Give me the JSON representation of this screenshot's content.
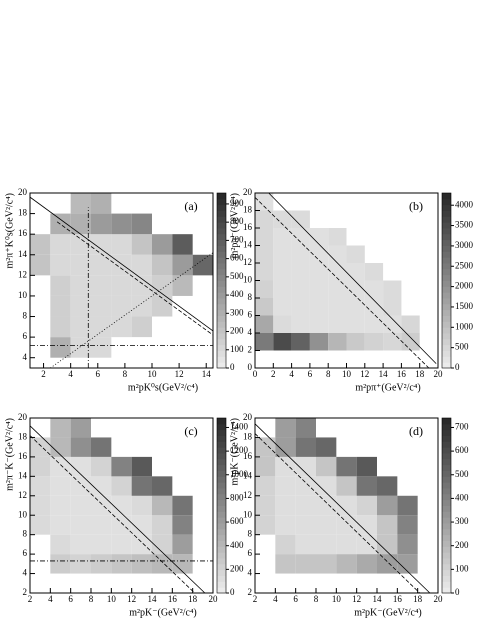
{
  "chart_data": [
    {
      "type": "heatmap",
      "label": "(a)",
      "xlabel": "m²pK⁰s(GeV²/c⁴)",
      "ylabel": "m²π⁺K⁰s(GeV²/c⁴)",
      "xlim": [
        1,
        14.5
      ],
      "ylim": [
        3,
        20
      ],
      "xticks": [
        2,
        4,
        6,
        8,
        10,
        12,
        14
      ],
      "yticks": [
        4,
        6,
        8,
        10,
        12,
        14,
        16,
        18,
        20
      ],
      "zlim": [
        0,
        960
      ],
      "zticks": [
        0,
        100,
        200,
        300,
        400,
        500,
        600,
        700,
        800,
        900
      ],
      "xbins": [
        1,
        2.5,
        4,
        5.5,
        7,
        8.5,
        10,
        11.5,
        13,
        14.5
      ],
      "ybins": [
        4,
        6,
        8,
        10,
        12,
        14,
        16,
        18,
        20
      ],
      "z": [
        [
          null,
          300,
          100,
          100,
          null,
          null,
          null,
          null,
          null
        ],
        [
          null,
          150,
          100,
          100,
          100,
          150,
          null,
          null,
          null
        ],
        [
          null,
          150,
          100,
          100,
          100,
          100,
          150,
          null,
          null
        ],
        [
          null,
          150,
          100,
          100,
          100,
          100,
          150,
          250,
          null
        ],
        [
          200,
          100,
          100,
          100,
          100,
          100,
          200,
          400,
          650
        ],
        [
          200,
          100,
          100,
          100,
          100,
          200,
          400,
          700,
          null
        ],
        [
          null,
          300,
          300,
          400,
          450,
          500,
          null,
          null,
          null
        ],
        [
          null,
          null,
          250,
          300,
          null,
          null,
          null,
          null,
          null
        ]
      ],
      "lines": [
        {
          "x": [
            1,
            14.5
          ],
          "y": [
            19.6,
            6.6
          ],
          "style": "solid"
        },
        {
          "x": [
            3,
            14.5
          ],
          "y": [
            17.2,
            6.2
          ],
          "style": "dashed"
        },
        {
          "x": [
            2.5,
            14.5
          ],
          "y": [
            3,
            14.2
          ],
          "style": "dotted"
        },
        {
          "x": [
            5.3,
            5.3
          ],
          "y": [
            3,
            18.6
          ],
          "style": "dashdot"
        },
        {
          "x": [
            1,
            14.5
          ],
          "y": [
            5.2,
            5.2
          ],
          "style": "dashdot"
        }
      ]
    },
    {
      "type": "heatmap",
      "label": "(b)",
      "xlabel": "m²pπ⁺(GeV²/c⁴)",
      "ylabel": "m²pπ⁻(GeV²/c⁴)",
      "xlim": [
        0,
        20
      ],
      "ylim": [
        0,
        20
      ],
      "xticks": [
        0,
        2,
        4,
        6,
        8,
        10,
        12,
        14,
        16,
        18,
        20
      ],
      "yticks": [
        0,
        2,
        4,
        6,
        8,
        10,
        12,
        14,
        16,
        18,
        20
      ],
      "zlim": [
        0,
        4300
      ],
      "zticks": [
        0,
        500,
        1000,
        1500,
        2000,
        2500,
        3000,
        3500,
        4000
      ],
      "xbins": [
        0,
        2,
        4,
        6,
        8,
        10,
        12,
        14,
        16,
        18,
        20
      ],
      "ybins": [
        0,
        2,
        4,
        6,
        8,
        10,
        12,
        14,
        16,
        18,
        20
      ],
      "z": [
        [
          null,
          null,
          null,
          null,
          null,
          null,
          null,
          null,
          null,
          null
        ],
        [
          2500,
          3500,
          3000,
          2000,
          1200,
          800,
          600,
          500,
          700,
          null
        ],
        [
          1500,
          400,
          300,
          300,
          300,
          300,
          300,
          300,
          500,
          null
        ],
        [
          800,
          300,
          300,
          300,
          300,
          300,
          300,
          400,
          null,
          null
        ],
        [
          600,
          300,
          300,
          300,
          300,
          300,
          300,
          400,
          null,
          null
        ],
        [
          500,
          300,
          300,
          300,
          300,
          300,
          400,
          null,
          null,
          null
        ],
        [
          500,
          300,
          300,
          300,
          300,
          400,
          null,
          null,
          null,
          null
        ],
        [
          500,
          300,
          300,
          300,
          400,
          null,
          null,
          null,
          null,
          null
        ],
        [
          500,
          400,
          400,
          null,
          null,
          null,
          null,
          null,
          null,
          null
        ],
        [
          300,
          null,
          null,
          null,
          null,
          null,
          null,
          null,
          null,
          null
        ]
      ],
      "lines": [
        {
          "x": [
            1.5,
            19.8
          ],
          "y": [
            20,
            0.5
          ],
          "style": "solid"
        },
        {
          "x": [
            0,
            19
          ],
          "y": [
            19.5,
            0
          ],
          "style": "dashed"
        }
      ]
    },
    {
      "type": "heatmap",
      "label": "(c)",
      "xlabel": "m²pK⁻(GeV²/c⁴)",
      "ylabel": "m²π⁻K⁻(GeV²/c⁴)",
      "xlim": [
        2,
        20
      ],
      "ylim": [
        2,
        20
      ],
      "xticks": [
        2,
        4,
        6,
        8,
        10,
        12,
        14,
        16,
        18,
        20
      ],
      "yticks": [
        2,
        4,
        6,
        8,
        10,
        12,
        14,
        16,
        18,
        20
      ],
      "zlim": [
        0,
        1480
      ],
      "zticks": [
        0,
        200,
        400,
        600,
        800,
        1000,
        1200,
        1400
      ],
      "xbins": [
        2,
        4,
        6,
        8,
        10,
        12,
        14,
        16,
        18,
        20
      ],
      "ybins": [
        2,
        4,
        6,
        8,
        10,
        12,
        14,
        16,
        18,
        20
      ],
      "z": [
        [
          null,
          null,
          null,
          null,
          null,
          null,
          null,
          null,
          null
        ],
        [
          null,
          250,
          200,
          250,
          300,
          350,
          400,
          400,
          null
        ],
        [
          null,
          150,
          100,
          100,
          100,
          100,
          200,
          600,
          null
        ],
        [
          150,
          100,
          100,
          100,
          100,
          100,
          200,
          800,
          null
        ],
        [
          150,
          100,
          100,
          100,
          100,
          150,
          400,
          900,
          null
        ],
        [
          150,
          100,
          100,
          100,
          200,
          900,
          1000,
          null,
          null
        ],
        [
          200,
          100,
          100,
          200,
          800,
          1100,
          null,
          null,
          null
        ],
        [
          200,
          400,
          700,
          900,
          null,
          null,
          null,
          null,
          null
        ],
        [
          null,
          400,
          600,
          null,
          null,
          null,
          null,
          null,
          null
        ]
      ],
      "lines": [
        {
          "x": [
            2,
            19.2
          ],
          "y": [
            19.2,
            2
          ],
          "style": "solid"
        },
        {
          "x": [
            2,
            18.2
          ],
          "y": [
            18.2,
            2
          ],
          "style": "dashed"
        },
        {
          "x": [
            2,
            20
          ],
          "y": [
            5.3,
            5.3
          ],
          "style": "dashdot"
        }
      ]
    },
    {
      "type": "heatmap",
      "label": "(d)",
      "xlabel": "m²pK⁻(GeV²/c⁴)",
      "ylabel": "m²pK⁻(GeV²/c⁴)",
      "xlim": [
        2,
        20
      ],
      "ylim": [
        2,
        20
      ],
      "xticks": [
        2,
        4,
        6,
        8,
        10,
        12,
        14,
        16,
        18,
        20
      ],
      "yticks": [
        2,
        4,
        6,
        8,
        10,
        12,
        14,
        16,
        18,
        20
      ],
      "zlim": [
        0,
        740
      ],
      "zticks": [
        0,
        100,
        200,
        300,
        400,
        500,
        600,
        700
      ],
      "xbins": [
        2,
        4,
        6,
        8,
        10,
        12,
        14,
        16,
        18,
        20
      ],
      "ybins": [
        2,
        4,
        6,
        8,
        10,
        12,
        14,
        16,
        18,
        20
      ],
      "z": [
        [
          null,
          null,
          null,
          null,
          null,
          null,
          null,
          null,
          null
        ],
        [
          null,
          150,
          150,
          150,
          200,
          250,
          300,
          300,
          null
        ],
        [
          null,
          100,
          60,
          60,
          60,
          60,
          150,
          350,
          null
        ],
        [
          100,
          60,
          60,
          60,
          60,
          60,
          150,
          400,
          null
        ],
        [
          100,
          60,
          60,
          60,
          60,
          100,
          300,
          450,
          null
        ],
        [
          100,
          60,
          60,
          60,
          150,
          450,
          500,
          null,
          null
        ],
        [
          150,
          60,
          60,
          150,
          450,
          550,
          null,
          null,
          null
        ],
        [
          150,
          300,
          450,
          500,
          null,
          null,
          null,
          null,
          null
        ],
        [
          null,
          300,
          400,
          null,
          null,
          null,
          null,
          null,
          null
        ]
      ],
      "lines": [
        {
          "x": [
            2,
            19.2
          ],
          "y": [
            19.4,
            2
          ],
          "style": "solid"
        },
        {
          "x": [
            2,
            18.2
          ],
          "y": [
            18.4,
            2
          ],
          "style": "dashed"
        }
      ]
    }
  ]
}
